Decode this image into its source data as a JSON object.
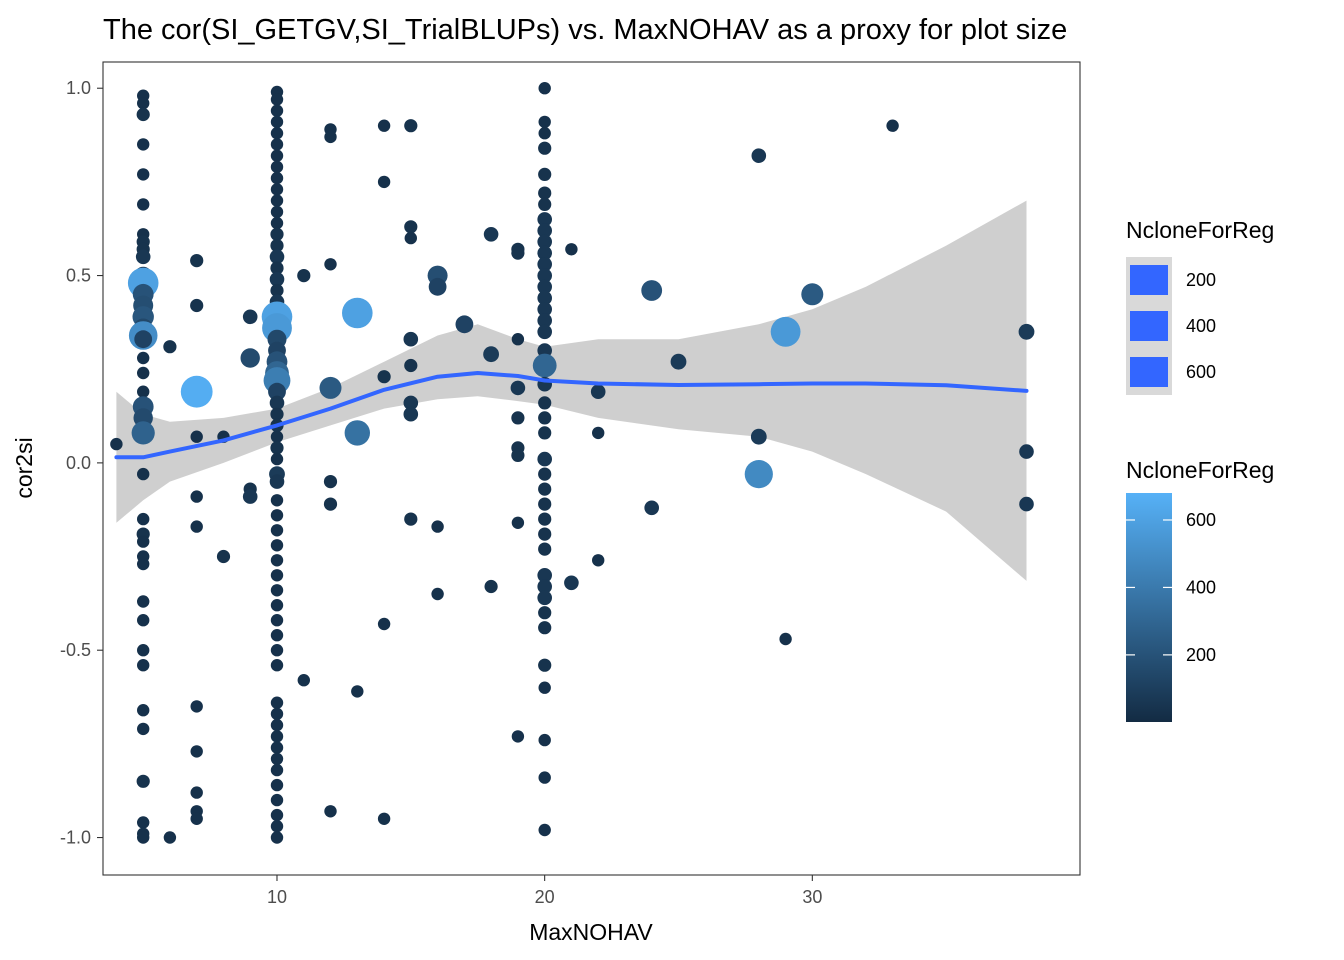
{
  "chart_data": {
    "type": "scatter",
    "title": "The cor(SI_GETGV,SI_TrialBLUPs) vs. MaxNOHAV as a proxy for plot size",
    "xlabel": "MaxNOHAV",
    "ylabel": "cor2si",
    "xlim": [
      3.5,
      40
    ],
    "ylim": [
      -1.1,
      1.07
    ],
    "x_ticks": [
      10,
      20,
      30
    ],
    "x_tick_labels": [
      "10",
      "20",
      "30"
    ],
    "y_ticks": [
      -1.0,
      -0.5,
      0.0,
      0.5,
      1.0
    ],
    "y_tick_labels": [
      "-1.0",
      "-0.5",
      "0.0",
      "0.5",
      "1.0"
    ],
    "grid": false,
    "legend_position": "right",
    "colors": {
      "low": "#132B43",
      "high": "#56B1F7",
      "smooth_line": "#3366FF",
      "ribbon": "#bdbdbd",
      "legend_key_fill": "#3366FF"
    },
    "size_legend": {
      "title": "NcloneForReg",
      "labels": [
        "200",
        "400",
        "600"
      ],
      "values": [
        200,
        400,
        600
      ]
    },
    "color_legend": {
      "title": "NcloneForReg",
      "labels": [
        "200",
        "400",
        "600"
      ],
      "values": [
        200,
        400,
        600
      ],
      "range": [
        1,
        680
      ]
    },
    "smooth": {
      "x": [
        4.0,
        5.0,
        6.0,
        8.0,
        10.0,
        12.0,
        14.0,
        16.0,
        17.5,
        19.0,
        20.0,
        22.0,
        25.0,
        28.0,
        30.0,
        32.0,
        35.0,
        38.0
      ],
      "y": [
        0.015,
        0.015,
        0.03,
        0.06,
        0.1,
        0.145,
        0.195,
        0.23,
        0.24,
        0.232,
        0.22,
        0.212,
        0.208,
        0.21,
        0.212,
        0.212,
        0.207,
        0.192
      ],
      "lower": [
        -0.16,
        -0.1,
        -0.05,
        0.0,
        0.055,
        0.1,
        0.145,
        0.17,
        0.178,
        0.165,
        0.155,
        0.12,
        0.09,
        0.07,
        0.03,
        -0.03,
        -0.13,
        -0.315
      ],
      "upper": [
        0.19,
        0.13,
        0.11,
        0.12,
        0.145,
        0.2,
        0.27,
        0.34,
        0.37,
        0.33,
        0.31,
        0.33,
        0.33,
        0.37,
        0.41,
        0.47,
        0.58,
        0.7
      ]
    },
    "points": [
      {
        "x": 4.0,
        "y": 0.05,
        "n": 30
      },
      {
        "x": 5.0,
        "y": 0.98,
        "n": 30
      },
      {
        "x": 5.0,
        "y": 0.96,
        "n": 30
      },
      {
        "x": 5.0,
        "y": 0.93,
        "n": 40
      },
      {
        "x": 5.0,
        "y": 0.85,
        "n": 30
      },
      {
        "x": 5.0,
        "y": 0.77,
        "n": 30
      },
      {
        "x": 5.0,
        "y": 0.69,
        "n": 30
      },
      {
        "x": 5.0,
        "y": 0.61,
        "n": 30
      },
      {
        "x": 5.0,
        "y": 0.59,
        "n": 40
      },
      {
        "x": 5.0,
        "y": 0.57,
        "n": 40
      },
      {
        "x": 5.0,
        "y": 0.55,
        "n": 60
      },
      {
        "x": 5.0,
        "y": 0.5,
        "n": 120
      },
      {
        "x": 5.0,
        "y": 0.48,
        "n": 600
      },
      {
        "x": 5.0,
        "y": 0.45,
        "n": 200
      },
      {
        "x": 5.0,
        "y": 0.42,
        "n": 180
      },
      {
        "x": 5.0,
        "y": 0.39,
        "n": 220
      },
      {
        "x": 5.0,
        "y": 0.36,
        "n": 150
      },
      {
        "x": 5.0,
        "y": 0.34,
        "n": 500
      },
      {
        "x": 5.0,
        "y": 0.33,
        "n": 120
      },
      {
        "x": 5.0,
        "y": 0.28,
        "n": 30
      },
      {
        "x": 5.0,
        "y": 0.24,
        "n": 30
      },
      {
        "x": 5.0,
        "y": 0.19,
        "n": 30
      },
      {
        "x": 5.0,
        "y": 0.15,
        "n": 200
      },
      {
        "x": 5.0,
        "y": 0.12,
        "n": 160
      },
      {
        "x": 5.0,
        "y": 0.08,
        "n": 280
      },
      {
        "x": 5.0,
        "y": -0.03,
        "n": 30
      },
      {
        "x": 5.0,
        "y": -0.15,
        "n": 30
      },
      {
        "x": 5.0,
        "y": -0.19,
        "n": 40
      },
      {
        "x": 5.0,
        "y": -0.21,
        "n": 30
      },
      {
        "x": 5.0,
        "y": -0.25,
        "n": 30
      },
      {
        "x": 5.0,
        "y": -0.27,
        "n": 30
      },
      {
        "x": 5.0,
        "y": -0.37,
        "n": 30
      },
      {
        "x": 5.0,
        "y": -0.42,
        "n": 30
      },
      {
        "x": 5.0,
        "y": -0.5,
        "n": 30
      },
      {
        "x": 5.0,
        "y": -0.54,
        "n": 30
      },
      {
        "x": 5.0,
        "y": -0.66,
        "n": 30
      },
      {
        "x": 5.0,
        "y": -0.71,
        "n": 30
      },
      {
        "x": 5.0,
        "y": -0.85,
        "n": 40
      },
      {
        "x": 5.0,
        "y": -0.96,
        "n": 30
      },
      {
        "x": 5.0,
        "y": -0.99,
        "n": 30
      },
      {
        "x": 5.0,
        "y": -1.0,
        "n": 30
      },
      {
        "x": 6.0,
        "y": 0.31,
        "n": 40
      },
      {
        "x": 6.0,
        "y": -1.0,
        "n": 30
      },
      {
        "x": 7.0,
        "y": 0.54,
        "n": 40
      },
      {
        "x": 7.0,
        "y": 0.42,
        "n": 40
      },
      {
        "x": 7.0,
        "y": 0.19,
        "n": 660
      },
      {
        "x": 7.0,
        "y": 0.07,
        "n": 30
      },
      {
        "x": 7.0,
        "y": -0.09,
        "n": 30
      },
      {
        "x": 7.0,
        "y": -0.17,
        "n": 30
      },
      {
        "x": 7.0,
        "y": -0.65,
        "n": 30
      },
      {
        "x": 7.0,
        "y": -0.77,
        "n": 30
      },
      {
        "x": 7.0,
        "y": -0.88,
        "n": 30
      },
      {
        "x": 7.0,
        "y": -0.93,
        "n": 30
      },
      {
        "x": 7.0,
        "y": -0.95,
        "n": 30
      },
      {
        "x": 8.0,
        "y": 0.07,
        "n": 30
      },
      {
        "x": 8.0,
        "y": -0.25,
        "n": 40
      },
      {
        "x": 9.0,
        "y": 0.39,
        "n": 60
      },
      {
        "x": 9.0,
        "y": 0.28,
        "n": 160
      },
      {
        "x": 9.0,
        "y": -0.07,
        "n": 40
      },
      {
        "x": 9.0,
        "y": -0.09,
        "n": 60
      },
      {
        "x": 10.0,
        "y": 0.99,
        "n": 30
      },
      {
        "x": 10.0,
        "y": 0.97,
        "n": 30
      },
      {
        "x": 10.0,
        "y": 0.94,
        "n": 30
      },
      {
        "x": 10.0,
        "y": 0.91,
        "n": 30
      },
      {
        "x": 10.0,
        "y": 0.88,
        "n": 30
      },
      {
        "x": 10.0,
        "y": 0.85,
        "n": 30
      },
      {
        "x": 10.0,
        "y": 0.82,
        "n": 30
      },
      {
        "x": 10.0,
        "y": 0.79,
        "n": 30
      },
      {
        "x": 10.0,
        "y": 0.76,
        "n": 30
      },
      {
        "x": 10.0,
        "y": 0.73,
        "n": 30
      },
      {
        "x": 10.0,
        "y": 0.7,
        "n": 30
      },
      {
        "x": 10.0,
        "y": 0.67,
        "n": 30
      },
      {
        "x": 10.0,
        "y": 0.64,
        "n": 30
      },
      {
        "x": 10.0,
        "y": 0.61,
        "n": 40
      },
      {
        "x": 10.0,
        "y": 0.58,
        "n": 40
      },
      {
        "x": 10.0,
        "y": 0.55,
        "n": 60
      },
      {
        "x": 10.0,
        "y": 0.52,
        "n": 40
      },
      {
        "x": 10.0,
        "y": 0.49,
        "n": 60
      },
      {
        "x": 10.0,
        "y": 0.46,
        "n": 40
      },
      {
        "x": 10.0,
        "y": 0.43,
        "n": 60
      },
      {
        "x": 10.0,
        "y": 0.39,
        "n": 600
      },
      {
        "x": 10.0,
        "y": 0.36,
        "n": 560
      },
      {
        "x": 10.0,
        "y": 0.33,
        "n": 150
      },
      {
        "x": 10.0,
        "y": 0.3,
        "n": 120
      },
      {
        "x": 10.0,
        "y": 0.27,
        "n": 200
      },
      {
        "x": 10.0,
        "y": 0.24,
        "n": 300
      },
      {
        "x": 10.0,
        "y": 0.22,
        "n": 420
      },
      {
        "x": 10.0,
        "y": 0.19,
        "n": 120
      },
      {
        "x": 10.0,
        "y": 0.16,
        "n": 60
      },
      {
        "x": 10.0,
        "y": 0.13,
        "n": 40
      },
      {
        "x": 10.0,
        "y": 0.1,
        "n": 40
      },
      {
        "x": 10.0,
        "y": 0.07,
        "n": 30
      },
      {
        "x": 10.0,
        "y": 0.04,
        "n": 40
      },
      {
        "x": 10.0,
        "y": 0.01,
        "n": 30
      },
      {
        "x": 10.0,
        "y": -0.03,
        "n": 80
      },
      {
        "x": 10.0,
        "y": -0.05,
        "n": 60
      },
      {
        "x": 10.0,
        "y": -0.1,
        "n": 30
      },
      {
        "x": 10.0,
        "y": -0.14,
        "n": 30
      },
      {
        "x": 10.0,
        "y": -0.18,
        "n": 30
      },
      {
        "x": 10.0,
        "y": -0.22,
        "n": 30
      },
      {
        "x": 10.0,
        "y": -0.26,
        "n": 30
      },
      {
        "x": 10.0,
        "y": -0.3,
        "n": 30
      },
      {
        "x": 10.0,
        "y": -0.34,
        "n": 30
      },
      {
        "x": 10.0,
        "y": -0.38,
        "n": 30
      },
      {
        "x": 10.0,
        "y": -0.42,
        "n": 30
      },
      {
        "x": 10.0,
        "y": -0.46,
        "n": 30
      },
      {
        "x": 10.0,
        "y": -0.5,
        "n": 30
      },
      {
        "x": 10.0,
        "y": -0.54,
        "n": 30
      },
      {
        "x": 10.0,
        "y": -0.64,
        "n": 30
      },
      {
        "x": 10.0,
        "y": -0.67,
        "n": 30
      },
      {
        "x": 10.0,
        "y": -0.7,
        "n": 30
      },
      {
        "x": 10.0,
        "y": -0.73,
        "n": 30
      },
      {
        "x": 10.0,
        "y": -0.76,
        "n": 30
      },
      {
        "x": 10.0,
        "y": -0.79,
        "n": 30
      },
      {
        "x": 10.0,
        "y": -0.82,
        "n": 30
      },
      {
        "x": 10.0,
        "y": -0.86,
        "n": 30
      },
      {
        "x": 10.0,
        "y": -0.9,
        "n": 30
      },
      {
        "x": 10.0,
        "y": -0.94,
        "n": 30
      },
      {
        "x": 10.0,
        "y": -0.97,
        "n": 30
      },
      {
        "x": 10.0,
        "y": -1.0,
        "n": 30
      },
      {
        "x": 11.0,
        "y": 0.5,
        "n": 40
      },
      {
        "x": 11.0,
        "y": -0.58,
        "n": 30
      },
      {
        "x": 12.0,
        "y": 0.89,
        "n": 30
      },
      {
        "x": 12.0,
        "y": 0.87,
        "n": 30
      },
      {
        "x": 12.0,
        "y": 0.53,
        "n": 30
      },
      {
        "x": 12.0,
        "y": 0.2,
        "n": 240
      },
      {
        "x": 12.0,
        "y": -0.05,
        "n": 40
      },
      {
        "x": 12.0,
        "y": -0.11,
        "n": 40
      },
      {
        "x": 12.0,
        "y": -0.93,
        "n": 30
      },
      {
        "x": 13.0,
        "y": 0.4,
        "n": 600
      },
      {
        "x": 13.0,
        "y": 0.08,
        "n": 360
      },
      {
        "x": 13.0,
        "y": -0.61,
        "n": 30
      },
      {
        "x": 14.0,
        "y": 0.9,
        "n": 30
      },
      {
        "x": 14.0,
        "y": 0.75,
        "n": 30
      },
      {
        "x": 14.0,
        "y": 0.23,
        "n": 40
      },
      {
        "x": 14.0,
        "y": -0.43,
        "n": 30
      },
      {
        "x": 14.0,
        "y": -0.95,
        "n": 30
      },
      {
        "x": 15.0,
        "y": 0.9,
        "n": 40
      },
      {
        "x": 15.0,
        "y": 0.63,
        "n": 40
      },
      {
        "x": 15.0,
        "y": 0.6,
        "n": 30
      },
      {
        "x": 15.0,
        "y": 0.33,
        "n": 60
      },
      {
        "x": 15.0,
        "y": 0.26,
        "n": 40
      },
      {
        "x": 15.0,
        "y": 0.16,
        "n": 60
      },
      {
        "x": 15.0,
        "y": 0.13,
        "n": 60
      },
      {
        "x": 15.0,
        "y": -0.15,
        "n": 40
      },
      {
        "x": 16.0,
        "y": 0.5,
        "n": 180
      },
      {
        "x": 16.0,
        "y": 0.47,
        "n": 120
      },
      {
        "x": 16.0,
        "y": -0.17,
        "n": 30
      },
      {
        "x": 16.0,
        "y": -0.35,
        "n": 30
      },
      {
        "x": 17.0,
        "y": 0.37,
        "n": 120
      },
      {
        "x": 18.0,
        "y": 0.61,
        "n": 60
      },
      {
        "x": 18.0,
        "y": 0.29,
        "n": 80
      },
      {
        "x": 18.0,
        "y": -0.33,
        "n": 40
      },
      {
        "x": 19.0,
        "y": 0.57,
        "n": 40
      },
      {
        "x": 19.0,
        "y": 0.56,
        "n": 40
      },
      {
        "x": 19.0,
        "y": 0.33,
        "n": 30
      },
      {
        "x": 19.0,
        "y": 0.2,
        "n": 60
      },
      {
        "x": 19.0,
        "y": 0.12,
        "n": 40
      },
      {
        "x": 19.0,
        "y": 0.04,
        "n": 40
      },
      {
        "x": 19.0,
        "y": 0.02,
        "n": 40
      },
      {
        "x": 19.0,
        "y": -0.16,
        "n": 30
      },
      {
        "x": 19.0,
        "y": -0.73,
        "n": 30
      },
      {
        "x": 20.0,
        "y": 1.0,
        "n": 30
      },
      {
        "x": 20.0,
        "y": 0.91,
        "n": 30
      },
      {
        "x": 20.0,
        "y": 0.88,
        "n": 30
      },
      {
        "x": 20.0,
        "y": 0.84,
        "n": 40
      },
      {
        "x": 20.0,
        "y": 0.77,
        "n": 40
      },
      {
        "x": 20.0,
        "y": 0.72,
        "n": 40
      },
      {
        "x": 20.0,
        "y": 0.69,
        "n": 40
      },
      {
        "x": 20.0,
        "y": 0.65,
        "n": 60
      },
      {
        "x": 20.0,
        "y": 0.62,
        "n": 60
      },
      {
        "x": 20.0,
        "y": 0.59,
        "n": 60
      },
      {
        "x": 20.0,
        "y": 0.56,
        "n": 60
      },
      {
        "x": 20.0,
        "y": 0.53,
        "n": 60
      },
      {
        "x": 20.0,
        "y": 0.5,
        "n": 60
      },
      {
        "x": 20.0,
        "y": 0.47,
        "n": 60
      },
      {
        "x": 20.0,
        "y": 0.44,
        "n": 60
      },
      {
        "x": 20.0,
        "y": 0.41,
        "n": 60
      },
      {
        "x": 20.0,
        "y": 0.38,
        "n": 60
      },
      {
        "x": 20.0,
        "y": 0.35,
        "n": 60
      },
      {
        "x": 20.0,
        "y": 0.3,
        "n": 60
      },
      {
        "x": 20.0,
        "y": 0.26,
        "n": 300
      },
      {
        "x": 20.0,
        "y": 0.21,
        "n": 60
      },
      {
        "x": 20.0,
        "y": 0.16,
        "n": 40
      },
      {
        "x": 20.0,
        "y": 0.12,
        "n": 40
      },
      {
        "x": 20.0,
        "y": 0.08,
        "n": 40
      },
      {
        "x": 20.0,
        "y": 0.01,
        "n": 60
      },
      {
        "x": 20.0,
        "y": -0.03,
        "n": 40
      },
      {
        "x": 20.0,
        "y": -0.07,
        "n": 40
      },
      {
        "x": 20.0,
        "y": -0.11,
        "n": 40
      },
      {
        "x": 20.0,
        "y": -0.15,
        "n": 40
      },
      {
        "x": 20.0,
        "y": -0.19,
        "n": 40
      },
      {
        "x": 20.0,
        "y": -0.23,
        "n": 40
      },
      {
        "x": 20.0,
        "y": -0.3,
        "n": 60
      },
      {
        "x": 20.0,
        "y": -0.33,
        "n": 60
      },
      {
        "x": 20.0,
        "y": -0.36,
        "n": 60
      },
      {
        "x": 20.0,
        "y": -0.4,
        "n": 40
      },
      {
        "x": 20.0,
        "y": -0.44,
        "n": 40
      },
      {
        "x": 20.0,
        "y": -0.54,
        "n": 40
      },
      {
        "x": 20.0,
        "y": -0.6,
        "n": 30
      },
      {
        "x": 20.0,
        "y": -0.74,
        "n": 30
      },
      {
        "x": 20.0,
        "y": -0.84,
        "n": 30
      },
      {
        "x": 20.0,
        "y": -0.98,
        "n": 30
      },
      {
        "x": 21.0,
        "y": 0.57,
        "n": 30
      },
      {
        "x": 21.0,
        "y": -0.32,
        "n": 60
      },
      {
        "x": 22.0,
        "y": 0.19,
        "n": 60
      },
      {
        "x": 22.0,
        "y": 0.08,
        "n": 30
      },
      {
        "x": 22.0,
        "y": -0.26,
        "n": 30
      },
      {
        "x": 24.0,
        "y": 0.46,
        "n": 200
      },
      {
        "x": 24.0,
        "y": -0.12,
        "n": 60
      },
      {
        "x": 25.0,
        "y": 0.27,
        "n": 80
      },
      {
        "x": 28.0,
        "y": 0.82,
        "n": 60
      },
      {
        "x": 28.0,
        "y": 0.07,
        "n": 80
      },
      {
        "x": 28.0,
        "y": -0.03,
        "n": 480
      },
      {
        "x": 29.0,
        "y": 0.35,
        "n": 560
      },
      {
        "x": 29.0,
        "y": -0.47,
        "n": 30
      },
      {
        "x": 30.0,
        "y": 0.45,
        "n": 240
      },
      {
        "x": 33.0,
        "y": 0.9,
        "n": 30
      },
      {
        "x": 38.0,
        "y": 0.35,
        "n": 80
      },
      {
        "x": 38.0,
        "y": 0.03,
        "n": 60
      },
      {
        "x": 38.0,
        "y": -0.11,
        "n": 60
      }
    ]
  }
}
